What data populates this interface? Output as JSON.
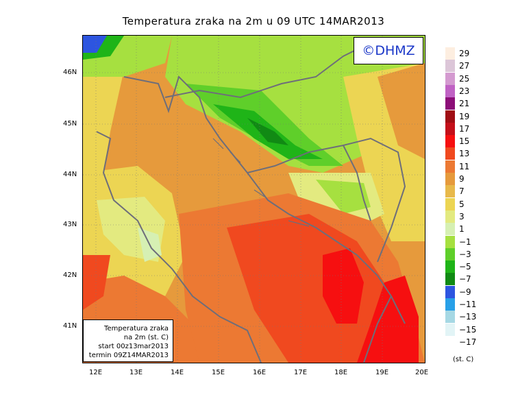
{
  "title": "Temperatura zraka na 2m u 09 UTC 14MAR2013",
  "watermark": "©DHMZ",
  "info_box": {
    "line1": "Temperatura zraka",
    "line2": "na 2m (st. C)",
    "line3": "start 00z13mar2013",
    "line4": "termin 09Z14MAR2013"
  },
  "lat_labels": [
    "46N",
    "45N",
    "44N",
    "43N",
    "42N",
    "41N"
  ],
  "lon_labels": [
    "12E",
    "13E",
    "14E",
    "15E",
    "16E",
    "17E",
    "18E",
    "19E",
    "20E"
  ],
  "legend": {
    "unit": "(st. C)",
    "entries": [
      {
        "label": "29",
        "color": "#fdeee0"
      },
      {
        "label": "27",
        "color": "#dcc6d8"
      },
      {
        "label": "25",
        "color": "#d49ad0"
      },
      {
        "label": "23",
        "color": "#c062c4"
      },
      {
        "label": "21",
        "color": "#8c0e78"
      },
      {
        "label": "19",
        "color": "#a00e14"
      },
      {
        "label": "17",
        "color": "#c4101a"
      },
      {
        "label": "15",
        "color": "#f60f10"
      },
      {
        "label": "13",
        "color": "#f0491f"
      },
      {
        "label": "11",
        "color": "#ec7933"
      },
      {
        "label": "9",
        "color": "#e69a3c"
      },
      {
        "label": "7",
        "color": "#e8b94a"
      },
      {
        "label": "5",
        "color": "#ecd553"
      },
      {
        "label": "3",
        "color": "#e3ea80"
      },
      {
        "label": "1",
        "color": "#d6f0b3"
      },
      {
        "label": "−1",
        "color": "#a6e040"
      },
      {
        "label": "−3",
        "color": "#5fcf2a"
      },
      {
        "label": "−5",
        "color": "#1fb418"
      },
      {
        "label": "−7",
        "color": "#118a14"
      },
      {
        "label": "−9",
        "color": "#2d55e0"
      },
      {
        "label": "−11",
        "color": "#28a0e8"
      },
      {
        "label": "−13",
        "color": "#a6d8e4"
      },
      {
        "label": "−15",
        "color": "#e2f4f6"
      },
      {
        "label": "−17",
        "color": "#ffffff"
      }
    ]
  }
}
